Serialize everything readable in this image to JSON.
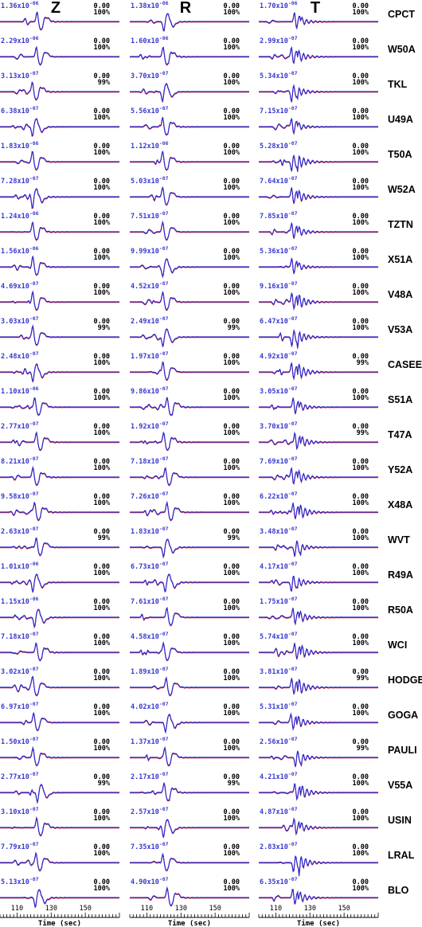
{
  "chart_data": {
    "type": "line",
    "components": [
      "Z",
      "R",
      "T"
    ],
    "xlabel": "Time (sec)",
    "xticks": [
      "110",
      "130",
      "150"
    ],
    "xlim": [
      100,
      170
    ],
    "colors": {
      "observed": "#d02020",
      "synthetic": "#2a2ad0"
    },
    "stations": [
      {
        "name": "CPCT",
        "Z": {
          "amp": "1.36x10",
          "exp": "-06",
          "shift": "0.00",
          "fit": "100%"
        },
        "R": {
          "amp": "1.38x10",
          "exp": "-06",
          "shift": "0.00",
          "fit": "100%"
        },
        "T": {
          "amp": "1.70x10",
          "exp": "-06",
          "shift": "0.00",
          "fit": "100%"
        }
      },
      {
        "name": "W50A",
        "Z": {
          "amp": "2.29x10",
          "exp": "-06",
          "shift": "0.00",
          "fit": "100%"
        },
        "R": {
          "amp": "1.60x10",
          "exp": "-06",
          "shift": "0.00",
          "fit": "100%"
        },
        "T": {
          "amp": "2.99x10",
          "exp": "-07",
          "shift": "0.00",
          "fit": "100%"
        }
      },
      {
        "name": "TKL",
        "Z": {
          "amp": "3.13x10",
          "exp": "-07",
          "shift": "0.00",
          "fit": "99%"
        },
        "R": {
          "amp": "3.70x10",
          "exp": "-07",
          "shift": "0.00",
          "fit": "100%"
        },
        "T": {
          "amp": "5.34x10",
          "exp": "-07",
          "shift": "0.00",
          "fit": "100%"
        }
      },
      {
        "name": "U49A",
        "Z": {
          "amp": "6.38x10",
          "exp": "-07",
          "shift": "0.00",
          "fit": "100%"
        },
        "R": {
          "amp": "5.56x10",
          "exp": "-07",
          "shift": "0.00",
          "fit": "100%"
        },
        "T": {
          "amp": "7.15x10",
          "exp": "-07",
          "shift": "0.00",
          "fit": "100%"
        }
      },
      {
        "name": "T50A",
        "Z": {
          "amp": "1.83x10",
          "exp": "-06",
          "shift": "0.00",
          "fit": "100%"
        },
        "R": {
          "amp": "1.12x10",
          "exp": "-06",
          "shift": "0.00",
          "fit": "100%"
        },
        "T": {
          "amp": "5.28x10",
          "exp": "-07",
          "shift": "0.00",
          "fit": "100%"
        }
      },
      {
        "name": "W52A",
        "Z": {
          "amp": "7.28x10",
          "exp": "-07",
          "shift": "0.00",
          "fit": "100%"
        },
        "R": {
          "amp": "5.03x10",
          "exp": "-07",
          "shift": "0.00",
          "fit": "100%"
        },
        "T": {
          "amp": "7.64x10",
          "exp": "-07",
          "shift": "0.00",
          "fit": "100%"
        }
      },
      {
        "name": "TZTN",
        "Z": {
          "amp": "1.24x10",
          "exp": "-06",
          "shift": "0.00",
          "fit": "100%"
        },
        "R": {
          "amp": "7.51x10",
          "exp": "-07",
          "shift": "0.00",
          "fit": "100%"
        },
        "T": {
          "amp": "7.85x10",
          "exp": "-07",
          "shift": "0.00",
          "fit": "100%"
        }
      },
      {
        "name": "X51A",
        "Z": {
          "amp": "1.56x10",
          "exp": "-06",
          "shift": "0.00",
          "fit": "100%"
        },
        "R": {
          "amp": "9.99x10",
          "exp": "-07",
          "shift": "0.00",
          "fit": "100%"
        },
        "T": {
          "amp": "5.36x10",
          "exp": "-07",
          "shift": "0.00",
          "fit": "100%"
        }
      },
      {
        "name": "V48A",
        "Z": {
          "amp": "4.69x10",
          "exp": "-07",
          "shift": "0.00",
          "fit": "100%"
        },
        "R": {
          "amp": "4.52x10",
          "exp": "-07",
          "shift": "0.00",
          "fit": "100%"
        },
        "T": {
          "amp": "9.16x10",
          "exp": "-07",
          "shift": "0.00",
          "fit": "100%"
        }
      },
      {
        "name": "V53A",
        "Z": {
          "amp": "3.03x10",
          "exp": "-07",
          "shift": "0.00",
          "fit": "99%"
        },
        "R": {
          "amp": "2.49x10",
          "exp": "-07",
          "shift": "0.00",
          "fit": "99%"
        },
        "T": {
          "amp": "6.47x10",
          "exp": "-07",
          "shift": "0.00",
          "fit": "100%"
        }
      },
      {
        "name": "CASEE",
        "Z": {
          "amp": "2.48x10",
          "exp": "-07",
          "shift": "0.00",
          "fit": "100%"
        },
        "R": {
          "amp": "1.97x10",
          "exp": "-07",
          "shift": "0.00",
          "fit": "100%"
        },
        "T": {
          "amp": "4.92x10",
          "exp": "-07",
          "shift": "0.00",
          "fit": "99%"
        }
      },
      {
        "name": "S51A",
        "Z": {
          "amp": "1.10x10",
          "exp": "-06",
          "shift": "0.00",
          "fit": "100%"
        },
        "R": {
          "amp": "9.86x10",
          "exp": "-07",
          "shift": "0.00",
          "fit": "100%"
        },
        "T": {
          "amp": "3.05x10",
          "exp": "-07",
          "shift": "0.00",
          "fit": "100%"
        }
      },
      {
        "name": "T47A",
        "Z": {
          "amp": "2.77x10",
          "exp": "-07",
          "shift": "0.00",
          "fit": "100%"
        },
        "R": {
          "amp": "1.92x10",
          "exp": "-07",
          "shift": "0.00",
          "fit": "100%"
        },
        "T": {
          "amp": "3.70x10",
          "exp": "-07",
          "shift": "0.00",
          "fit": "99%"
        }
      },
      {
        "name": "Y52A",
        "Z": {
          "amp": "8.21x10",
          "exp": "-07",
          "shift": "0.00",
          "fit": "100%"
        },
        "R": {
          "amp": "7.18x10",
          "exp": "-07",
          "shift": "0.00",
          "fit": "100%"
        },
        "T": {
          "amp": "7.69x10",
          "exp": "-07",
          "shift": "0.00",
          "fit": "100%"
        }
      },
      {
        "name": "X48A",
        "Z": {
          "amp": "9.58x10",
          "exp": "-07",
          "shift": "0.00",
          "fit": "100%"
        },
        "R": {
          "amp": "7.26x10",
          "exp": "-07",
          "shift": "0.00",
          "fit": "100%"
        },
        "T": {
          "amp": "6.22x10",
          "exp": "-07",
          "shift": "0.00",
          "fit": "100%"
        }
      },
      {
        "name": "WVT",
        "Z": {
          "amp": "2.63x10",
          "exp": "-07",
          "shift": "0.00",
          "fit": "99%"
        },
        "R": {
          "amp": "1.83x10",
          "exp": "-07",
          "shift": "0.00",
          "fit": "99%"
        },
        "T": {
          "amp": "3.48x10",
          "exp": "-07",
          "shift": "0.00",
          "fit": "100%"
        }
      },
      {
        "name": "R49A",
        "Z": {
          "amp": "1.01x10",
          "exp": "-06",
          "shift": "0.00",
          "fit": "100%"
        },
        "R": {
          "amp": "6.73x10",
          "exp": "-07",
          "shift": "0.00",
          "fit": "100%"
        },
        "T": {
          "amp": "4.17x10",
          "exp": "-07",
          "shift": "0.00",
          "fit": "100%"
        }
      },
      {
        "name": "R50A",
        "Z": {
          "amp": "1.15x10",
          "exp": "-06",
          "shift": "0.00",
          "fit": "100%"
        },
        "R": {
          "amp": "7.61x10",
          "exp": "-07",
          "shift": "0.00",
          "fit": "100%"
        },
        "T": {
          "amp": "1.75x10",
          "exp": "-07",
          "shift": "0.00",
          "fit": "100%"
        }
      },
      {
        "name": "WCI",
        "Z": {
          "amp": "7.18x10",
          "exp": "-07",
          "shift": "0.00",
          "fit": "100%"
        },
        "R": {
          "amp": "4.58x10",
          "exp": "-07",
          "shift": "0.00",
          "fit": "100%"
        },
        "T": {
          "amp": "5.74x10",
          "exp": "-07",
          "shift": "0.00",
          "fit": "100%"
        }
      },
      {
        "name": "HODGE",
        "Z": {
          "amp": "3.02x10",
          "exp": "-07",
          "shift": "0.00",
          "fit": "100%"
        },
        "R": {
          "amp": "1.89x10",
          "exp": "-07",
          "shift": "0.00",
          "fit": "100%"
        },
        "T": {
          "amp": "3.81x10",
          "exp": "-07",
          "shift": "0.00",
          "fit": "99%"
        }
      },
      {
        "name": "GOGA",
        "Z": {
          "amp": "6.97x10",
          "exp": "-07",
          "shift": "0.00",
          "fit": "100%"
        },
        "R": {
          "amp": "4.02x10",
          "exp": "-07",
          "shift": "0.00",
          "fit": "100%"
        },
        "T": {
          "amp": "5.31x10",
          "exp": "-07",
          "shift": "0.00",
          "fit": "100%"
        }
      },
      {
        "name": "PAULI",
        "Z": {
          "amp": "1.50x10",
          "exp": "-07",
          "shift": "0.00",
          "fit": "100%"
        },
        "R": {
          "amp": "1.37x10",
          "exp": "-07",
          "shift": "0.00",
          "fit": "100%"
        },
        "T": {
          "amp": "2.56x10",
          "exp": "-07",
          "shift": "0.00",
          "fit": "99%"
        }
      },
      {
        "name": "V55A",
        "Z": {
          "amp": "2.77x10",
          "exp": "-07",
          "shift": "0.00",
          "fit": "99%"
        },
        "R": {
          "amp": "2.17x10",
          "exp": "-07",
          "shift": "0.00",
          "fit": "99%"
        },
        "T": {
          "amp": "4.21x10",
          "exp": "-07",
          "shift": "0.00",
          "fit": "100%"
        }
      },
      {
        "name": "USIN",
        "Z": {
          "amp": "3.10x10",
          "exp": "-07",
          "shift": "0.00",
          "fit": "100%"
        },
        "R": {
          "amp": "2.57x10",
          "exp": "-07",
          "shift": "0.00",
          "fit": "100%"
        },
        "T": {
          "amp": "4.87x10",
          "exp": "-07",
          "shift": "0.00",
          "fit": "100%"
        }
      },
      {
        "name": "LRAL",
        "Z": {
          "amp": "7.79x10",
          "exp": "-07",
          "shift": "0.00",
          "fit": "100%"
        },
        "R": {
          "amp": "7.35x10",
          "exp": "-07",
          "shift": "0.00",
          "fit": "100%"
        },
        "T": {
          "amp": "2.83x10",
          "exp": "-07",
          "shift": "0.00",
          "fit": "100%"
        }
      },
      {
        "name": "BLO",
        "Z": {
          "amp": "5.13x10",
          "exp": "-07",
          "shift": "0.00",
          "fit": "100%"
        },
        "R": {
          "amp": "4.90x10",
          "exp": "-07",
          "shift": "0.00",
          "fit": "100%"
        },
        "T": {
          "amp": "6.35x10",
          "exp": "-07",
          "shift": "0.00",
          "fit": "100%"
        }
      }
    ]
  }
}
